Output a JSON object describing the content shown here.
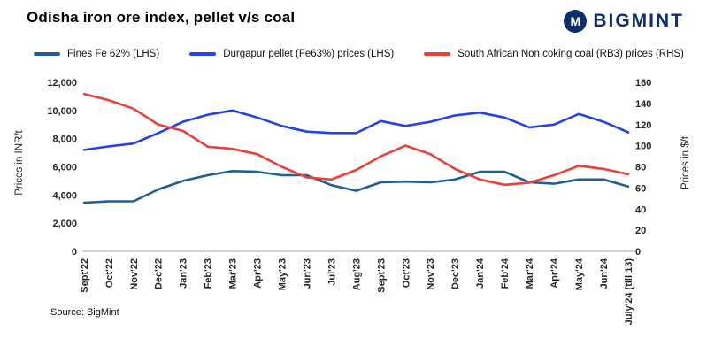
{
  "header": {
    "title": "Odisha iron ore index, pellet v/s coal",
    "brand": "BIGMINT",
    "brand_icon_letter": "M",
    "brand_color": "#0d2e6e"
  },
  "source": "Source: BigMint",
  "chart_data": {
    "type": "line",
    "title": "Odisha iron ore index, pellet v/s coal",
    "legend_position": "top-left",
    "grid": false,
    "categories": [
      "Sept'22",
      "Oct'22",
      "Nov'22",
      "Dec'22",
      "Jan'23",
      "Feb'23",
      "Mar'23",
      "Apr'23",
      "May'23",
      "Jun'23",
      "Jul'23",
      "Aug'23",
      "Sept'23",
      "Oct'23",
      "Nov'23",
      "Dec'23",
      "Jan'24",
      "Feb'24",
      "Mar'24",
      "Apr'24",
      "May'24",
      "Jun'24",
      "July'24 (till 13)"
    ],
    "left_axis": {
      "label": "Prices in INR/t",
      "min": 0,
      "max": 12000,
      "step": 2000
    },
    "right_axis": {
      "label": "Prices in $/t",
      "min": 0,
      "max": 160,
      "step": 20
    },
    "series": [
      {
        "name": "Fines Fe 62% (LHS)",
        "axis": "left",
        "color": "#1e5f96",
        "values": [
          3450,
          3550,
          3550,
          4400,
          5000,
          5400,
          5700,
          5650,
          5400,
          5400,
          4700,
          4300,
          4900,
          4950,
          4900,
          5100,
          5650,
          5650,
          4900,
          4800,
          5100,
          5100,
          4600
        ]
      },
      {
        "name": "Durgapur pellet (Fe63%) prices (LHS)",
        "axis": "left",
        "color": "#2343e8",
        "values": [
          7200,
          7450,
          7650,
          8400,
          9200,
          9700,
          10000,
          9500,
          8900,
          8500,
          8400,
          8400,
          9250,
          8900,
          9200,
          9650,
          9850,
          9500,
          8800,
          9000,
          9750,
          9200,
          8450
        ]
      },
      {
        "name": "South African Non coking coal (RB3) prices (RHS)",
        "axis": "right",
        "color": "#e8413a",
        "values": [
          149,
          143,
          135,
          120,
          114,
          99,
          97,
          92,
          80,
          70,
          68,
          77,
          90,
          100,
          92,
          78,
          68,
          63,
          65,
          72,
          81,
          78,
          73
        ]
      }
    ]
  }
}
